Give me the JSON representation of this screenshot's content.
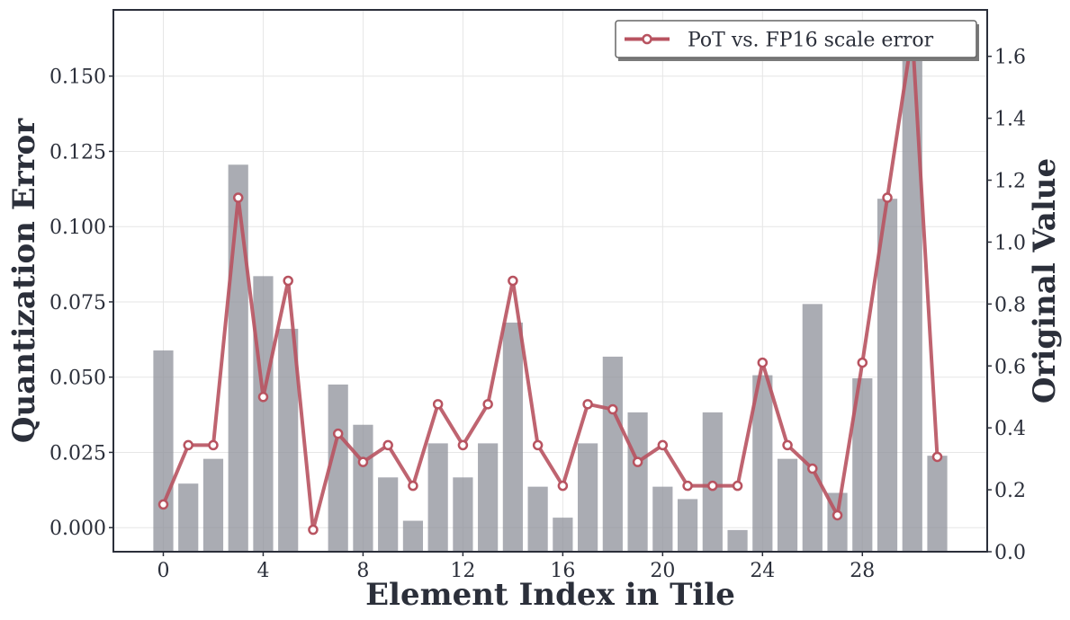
{
  "chart_data": {
    "type": "bar+line",
    "title": "",
    "xlabel": "Element Index in Tile",
    "ylabel_left": "Quantization Error",
    "ylabel_right": "Original Value",
    "x": [
      0,
      1,
      2,
      3,
      4,
      5,
      6,
      7,
      8,
      9,
      10,
      11,
      12,
      13,
      14,
      15,
      16,
      17,
      18,
      19,
      20,
      21,
      22,
      23,
      24,
      25,
      26,
      27,
      28,
      29,
      30,
      31
    ],
    "x_ticks": [
      0,
      4,
      8,
      12,
      16,
      20,
      24,
      28
    ],
    "xlim": [
      -2,
      33
    ],
    "ylim_left": [
      -0.008,
      0.172
    ],
    "y_ticks_left": [
      0.0,
      0.025,
      0.05,
      0.075,
      0.1,
      0.125,
      0.15
    ],
    "y_tick_labels_left": [
      "0.000",
      "0.025",
      "0.050",
      "0.075",
      "0.100",
      "0.125",
      "0.150"
    ],
    "ylim_right": [
      0.0,
      1.75
    ],
    "y_ticks_right": [
      0.0,
      0.2,
      0.4,
      0.6,
      0.8,
      1.0,
      1.2,
      1.4,
      1.6
    ],
    "y_tick_labels_right": [
      "0.0",
      "0.2",
      "0.4",
      "0.6",
      "0.8",
      "1.0",
      "1.2",
      "1.4",
      "1.6"
    ],
    "grid": true,
    "legend_position": "top-right",
    "bar_series": {
      "axis": "right",
      "color": "#8e9099",
      "values": [
        0.65,
        0.22,
        0.3,
        1.25,
        0.89,
        0.72,
        0.0,
        0.54,
        0.41,
        0.24,
        0.1,
        0.35,
        0.24,
        0.35,
        0.74,
        0.21,
        0.11,
        0.35,
        0.63,
        0.45,
        0.21,
        0.17,
        0.45,
        0.07,
        0.57,
        0.3,
        0.8,
        0.19,
        0.56,
        1.14,
        1.66,
        0.31
      ]
    },
    "line_series": {
      "name": "PoT vs. FP16 scale error",
      "axis": "left",
      "color": "#b85360",
      "values": [
        0.0077,
        0.0274,
        0.0274,
        0.1096,
        0.0434,
        0.082,
        -0.0007,
        0.0312,
        0.0218,
        0.0274,
        0.0139,
        0.041,
        0.0274,
        0.041,
        0.082,
        0.0274,
        0.0139,
        0.041,
        0.0393,
        0.0218,
        0.0274,
        0.0139,
        0.0139,
        0.0139,
        0.0548,
        0.0274,
        0.0196,
        0.0041,
        0.0548,
        0.1096,
        0.164,
        0.0235
      ]
    }
  }
}
